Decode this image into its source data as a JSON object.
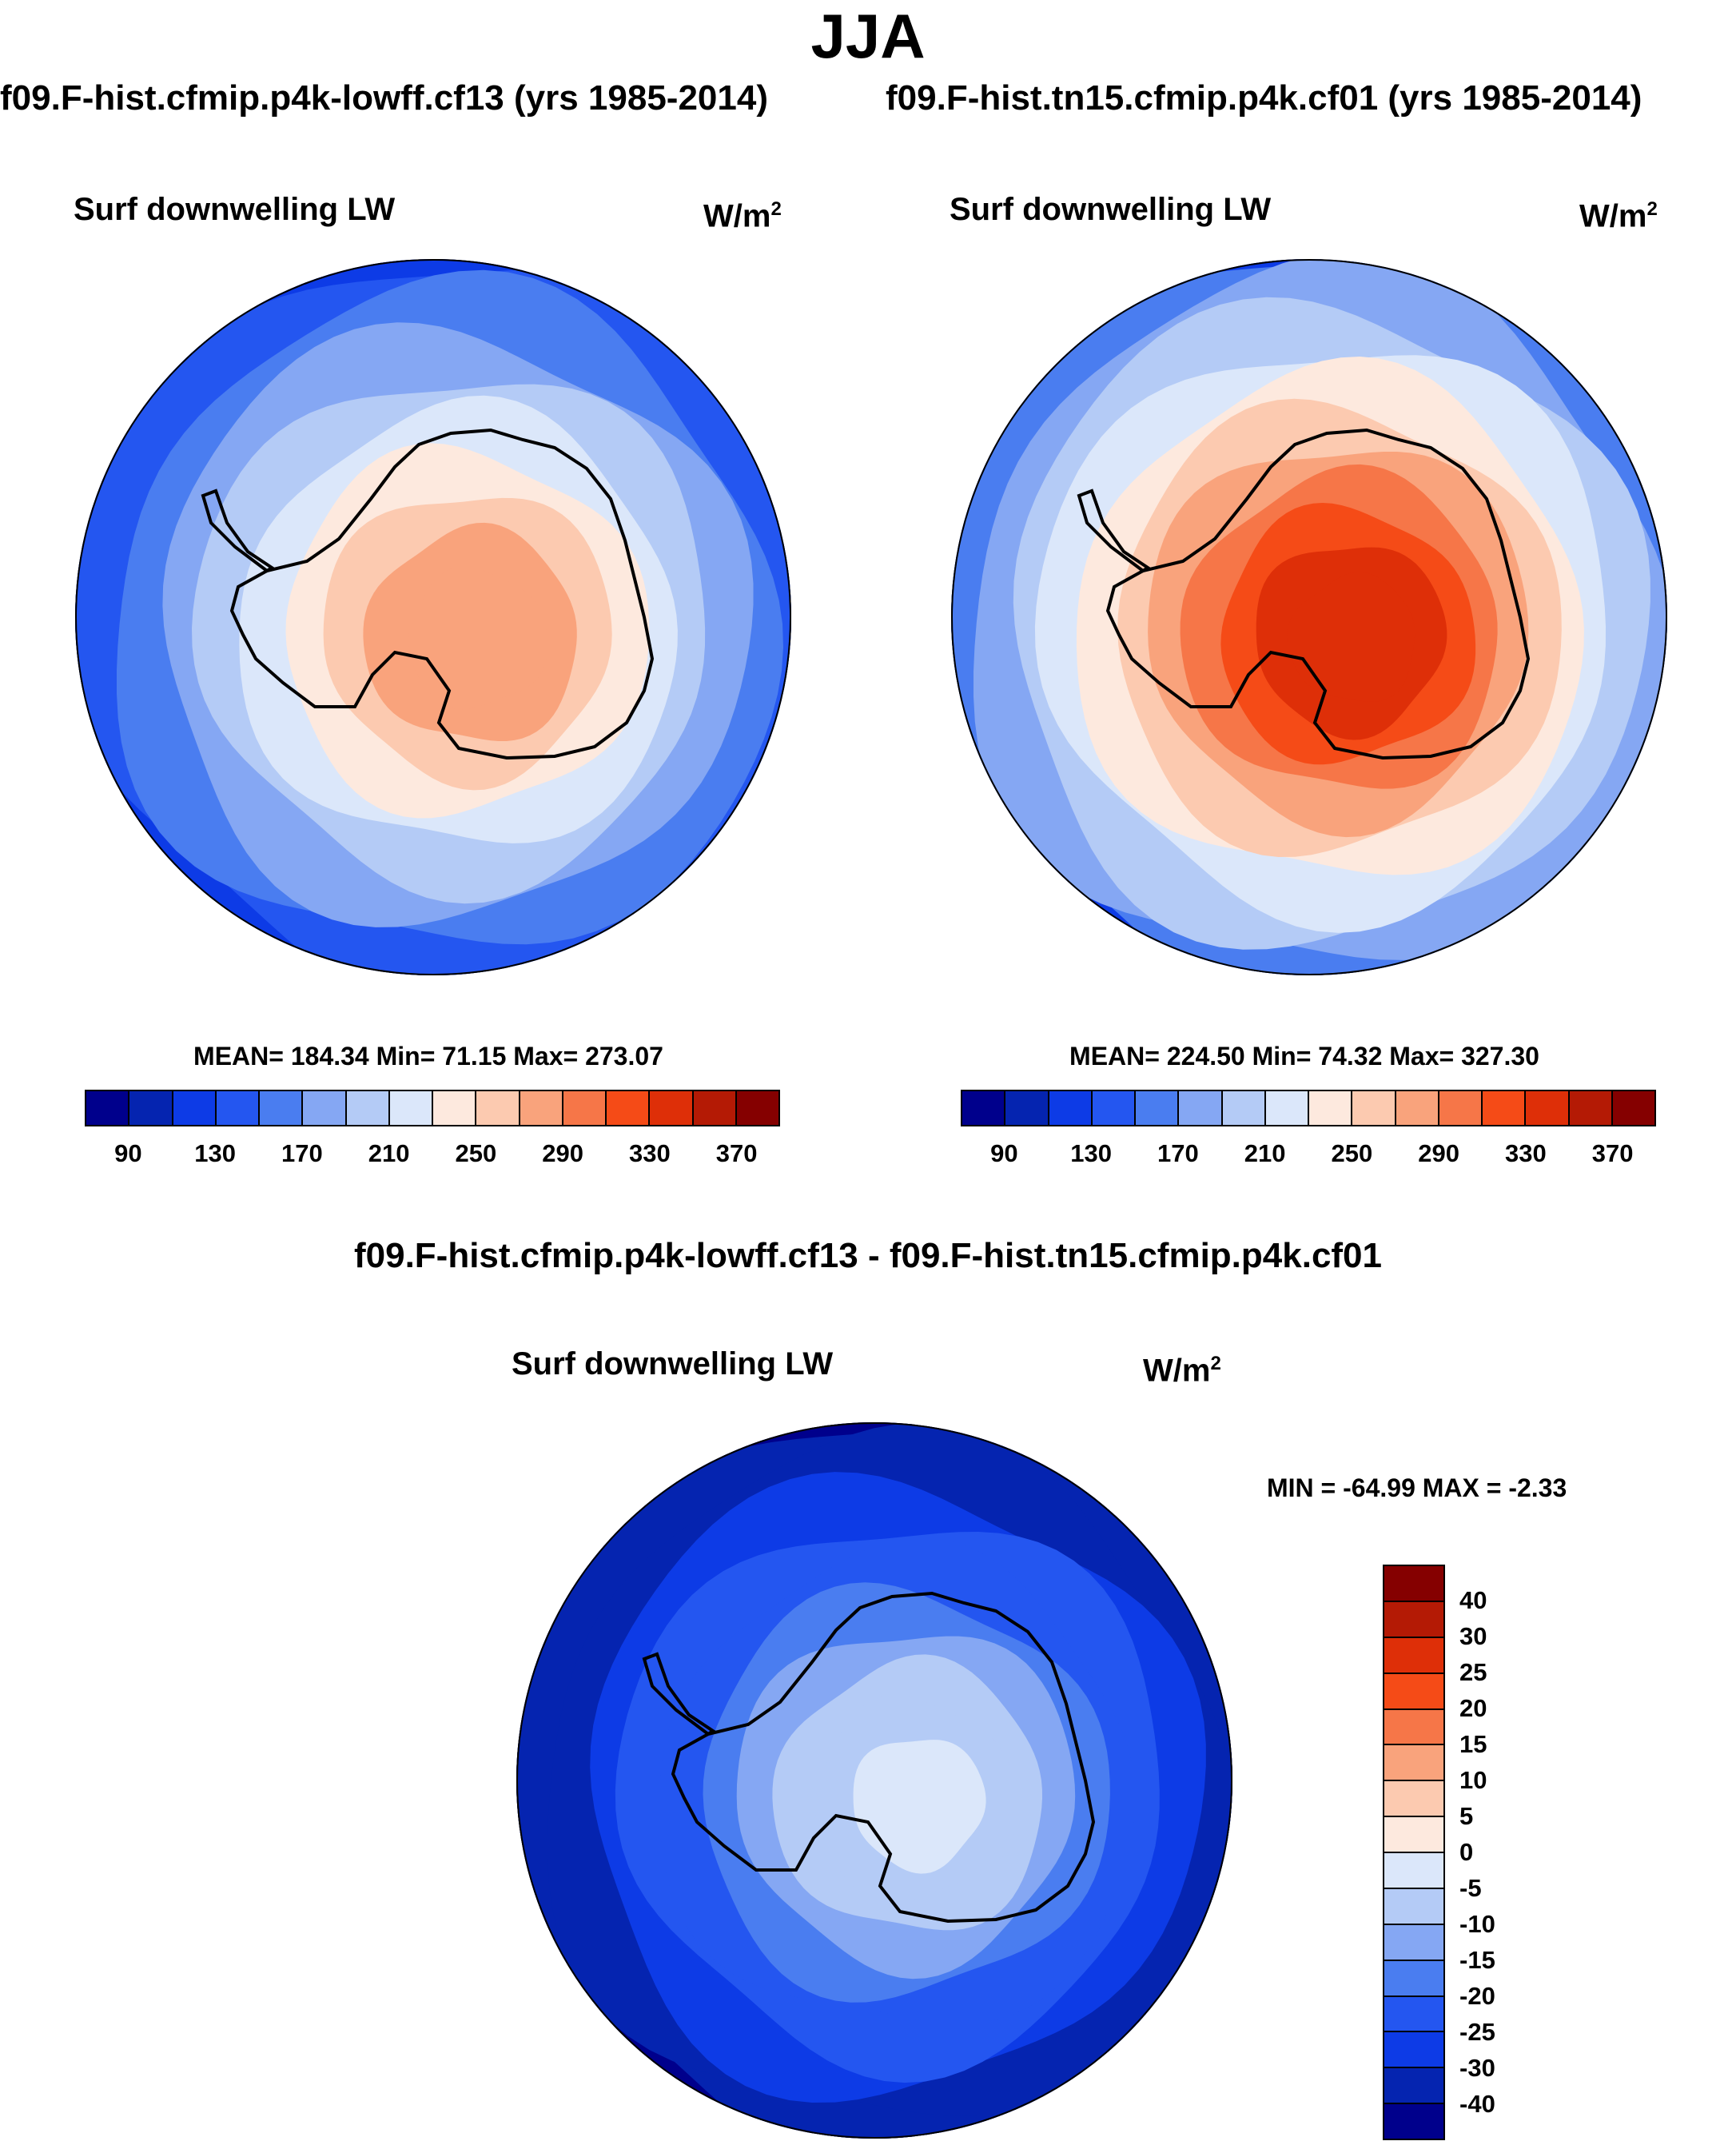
{
  "season": "JJA",
  "case_a_label": "f09.F-hist.cfmip.p4k-lowff.cf13 (yrs 1985-2014)",
  "case_b_label": "f09.F-hist.tn15.cfmip.p4k.cf01 (yrs 1985-2014)",
  "diff_label": "f09.F-hist.cfmip.p4k-lowff.cf13 - f09.F-hist.tn15.cfmip.p4k.cf01",
  "panels": {
    "a": {
      "title": "Surf downwelling LW",
      "units": "W/m",
      "units_exp": "2",
      "stats": "MEAN= 184.34  Min=  71.15  Max= 273.07"
    },
    "b": {
      "title": "Surf downwelling LW",
      "units": "W/m",
      "units_exp": "2",
      "stats": "MEAN= 224.50  Min=  74.32  Max= 327.30"
    },
    "diff": {
      "title": "Surf downwelling LW",
      "units": "W/m",
      "units_exp": "2",
      "stats": "MIN = -64.99 MAX =  -2.33"
    }
  },
  "chart_data": [
    {
      "type": "heatmap",
      "title": "Surf downwelling LW",
      "case": "f09.F-hist.cfmip.p4k-lowff.cf13 (yrs 1985-2014)",
      "units": "W/m2",
      "projection": "south-polar-stereographic",
      "mean": 184.34,
      "min": 71.15,
      "max": 273.07,
      "colorbar_ticks": [
        "90",
        "130",
        "170",
        "210",
        "250",
        "290",
        "330",
        "370"
      ],
      "contour_bins": [
        80,
        90,
        110,
        130,
        150,
        170,
        190,
        210,
        230,
        250,
        270,
        290,
        310,
        330,
        350,
        370
      ],
      "ring_levels": [
        70,
        100,
        125,
        145,
        165,
        185,
        205,
        225,
        245,
        255,
        265
      ]
    },
    {
      "type": "heatmap",
      "title": "Surf downwelling LW",
      "case": "f09.F-hist.tn15.cfmip.p4k.cf01 (yrs 1985-2014)",
      "units": "W/m2",
      "projection": "south-polar-stereographic",
      "mean": 224.5,
      "min": 74.32,
      "max": 327.3,
      "colorbar_ticks": [
        "90",
        "130",
        "170",
        "210",
        "250",
        "290",
        "330",
        "370"
      ],
      "ring_levels": [
        75,
        105,
        130,
        155,
        175,
        195,
        215,
        235,
        255,
        275,
        295,
        315,
        325
      ]
    },
    {
      "type": "heatmap",
      "title": "Surf downwelling LW",
      "case": "f09.F-hist.cfmip.p4k-lowff.cf13 - f09.F-hist.tn15.cfmip.p4k.cf01",
      "units": "W/m2",
      "projection": "south-polar-stereographic",
      "min": -64.99,
      "max": -2.33,
      "colorbar_ticks": [
        "40",
        "30",
        "25",
        "20",
        "15",
        "10",
        "5",
        "0",
        "-5",
        "-10",
        "-15",
        "-20",
        "-25",
        "-30",
        "-40"
      ],
      "ring_levels": [
        -45,
        -45,
        -35,
        -32,
        -28,
        -25,
        -22,
        -18,
        -14,
        -10,
        -7,
        -4
      ]
    }
  ],
  "colors": {
    "seq_16": [
      "#00008c",
      "#0524b0",
      "#0d3be6",
      "#2456f0",
      "#4a7df0",
      "#85a7f3",
      "#b4cbf6",
      "#dbe7fa",
      "#fde9de",
      "#fccab0",
      "#f9a37c",
      "#f67648",
      "#f54b17",
      "#de2f08",
      "#b41a05",
      "#850000"
    ],
    "cb_abs": [
      "#00008c",
      "#0524b0",
      "#0d3be6",
      "#2456f0",
      "#4a7df0",
      "#85a7f3",
      "#b4cbf6",
      "#dbe7fa",
      "#fde9de",
      "#fccab0",
      "#f9a37c",
      "#f67648",
      "#f54b17",
      "#de2f08",
      "#b41a05",
      "#850000"
    ],
    "cb_diff": [
      "#850000",
      "#b41a05",
      "#de2f08",
      "#f54b17",
      "#f67648",
      "#f9a37c",
      "#fccab0",
      "#fde9de",
      "#dbe7fa",
      "#b4cbf6",
      "#85a7f3",
      "#4a7df0",
      "#2456f0",
      "#0d3be6",
      "#0524b0",
      "#00008c"
    ]
  }
}
